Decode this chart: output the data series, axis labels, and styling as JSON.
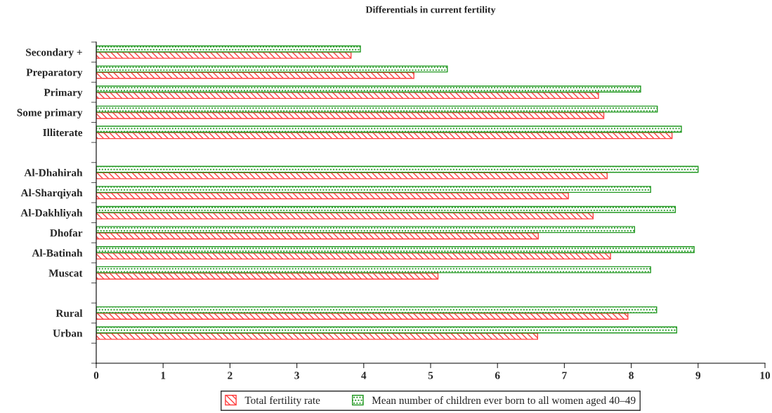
{
  "chart_data": {
    "type": "bar",
    "orientation": "horizontal",
    "title": "Differentials in current fertility",
    "categories": [
      "Secondary +",
      "Preparatory",
      "Primary",
      "Some primary",
      "Illiterate",
      null,
      "Al-Dhahirah",
      "Al-Sharqiyah",
      "Al-Dakhliyah",
      "Dhofar",
      "Al-Batinah",
      "Muscat",
      null,
      "Rural",
      "Urban",
      null
    ],
    "series": [
      {
        "name": "Total fertility rate",
        "color": "#ff4040",
        "values": [
          3.81,
          4.75,
          7.51,
          7.59,
          8.61,
          null,
          7.64,
          7.06,
          7.43,
          6.61,
          7.69,
          5.11,
          null,
          7.95,
          6.6,
          null
        ]
      },
      {
        "name": "Mean number of children ever born to all women aged 40–49",
        "color": "#229922",
        "values": [
          3.95,
          5.25,
          8.14,
          8.39,
          8.75,
          null,
          9.0,
          8.29,
          8.66,
          8.05,
          8.94,
          8.29,
          null,
          8.38,
          8.68,
          null
        ]
      }
    ],
    "xlim": [
      0,
      10
    ],
    "xticks": [
      0,
      1,
      2,
      3,
      4,
      5,
      6,
      7,
      8,
      9,
      10
    ],
    "grid": false,
    "legend": "bottom"
  }
}
